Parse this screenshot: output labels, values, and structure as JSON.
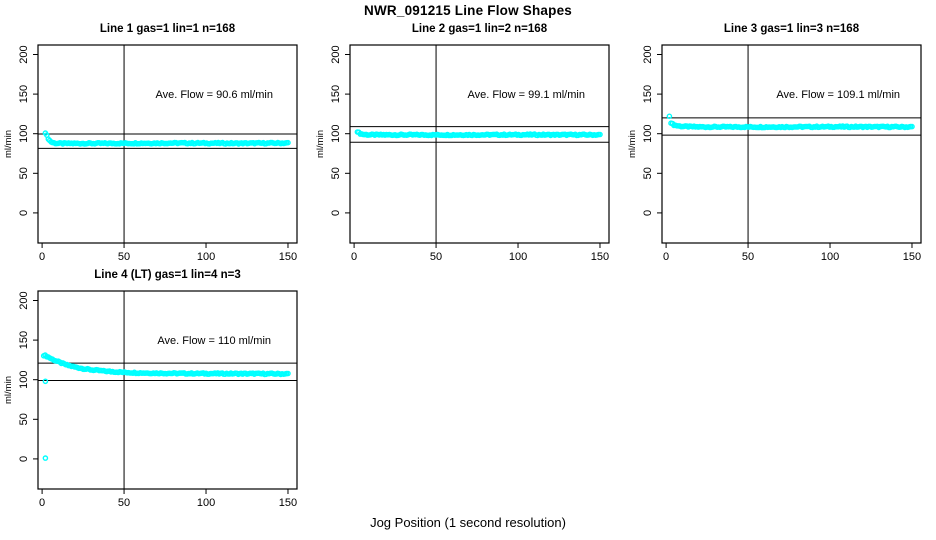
{
  "figure": {
    "title": "NWR_091215  Line Flow Shapes",
    "xlabel": "Jog Position (1 second resolution)",
    "background_color": "#ffffff",
    "point_color": "#00ffff",
    "line_color": "#000000"
  },
  "chart_data": {
    "type": "scatter",
    "title": "NWR_091215  Line Flow Shapes",
    "xlabel": "Jog Position (1 second resolution)",
    "grid": "off",
    "layout_hint": "4 panels: 3 in top row, 1 in bottom-left; each panel has a vertical reference line at x=50 and horizontal reference lines at average flow +/- 10%",
    "xlim": [
      -2.5,
      155.5
    ],
    "ylim": [
      -38,
      212
    ],
    "x_ticks": [
      0,
      50,
      100,
      150
    ],
    "y_ticks": [
      0,
      50,
      100,
      150,
      200
    ],
    "annotation_anchor_data_coords": [
      105,
      150
    ],
    "panels": [
      {
        "title": "Line 1 gas=1 lin=1 n=168",
        "ylabel": "ml/min",
        "annotation": "Ave. Flow =  90.6  ml/min",
        "ave_flow_ml_min": 90.6,
        "n_points": 168,
        "vline_x": 50,
        "hlines": [
          99.7,
          81.5
        ],
        "series_keypoints": [
          [
            2,
            101.5
          ],
          [
            3,
            97
          ],
          [
            4,
            93
          ],
          [
            5,
            90.5
          ],
          [
            6,
            89
          ],
          [
            8,
            88
          ],
          [
            12,
            87.7
          ],
          [
            40,
            87.8
          ],
          [
            80,
            88.2
          ],
          [
            120,
            87.9
          ],
          [
            150,
            88.2
          ]
        ],
        "outlier_points": []
      },
      {
        "title": "Line 2 gas=1 lin=2 n=168",
        "ylabel": "ml/min",
        "annotation": "Ave. Flow =  99.1  ml/min",
        "ave_flow_ml_min": 99.1,
        "n_points": 168,
        "vline_x": 50,
        "hlines": [
          109.0,
          89.2
        ],
        "series_keypoints": [
          [
            2,
            103
          ],
          [
            3,
            101
          ],
          [
            4,
            100
          ],
          [
            6,
            99
          ],
          [
            10,
            98.6
          ],
          [
            50,
            98.5
          ],
          [
            100,
            98.7
          ],
          [
            150,
            98.6
          ]
        ],
        "outlier_points": []
      },
      {
        "title": "Line 3 gas=1 lin=3 n=168",
        "ylabel": "ml/min",
        "annotation": "Ave. Flow =  109.1  ml/min",
        "ave_flow_ml_min": 109.1,
        "n_points": 168,
        "vline_x": 50,
        "hlines": [
          120.0,
          98.2
        ],
        "series_keypoints": [
          [
            3,
            114
          ],
          [
            4,
            112
          ],
          [
            5,
            111
          ],
          [
            7,
            110
          ],
          [
            10,
            109.2
          ],
          [
            20,
            108.6
          ],
          [
            60,
            108.5
          ],
          [
            100,
            108.8
          ],
          [
            150,
            108.6
          ]
        ],
        "outlier_points": [
          [
            2,
            122
          ]
        ]
      },
      {
        "title": "Line 4 (LT) gas=1 lin=4 n=3",
        "ylabel": "ml/min",
        "annotation": "Ave. Flow =  110  ml/min",
        "ave_flow_ml_min": 110,
        "n_points": 168,
        "vline_x": 50,
        "hlines": [
          121.0,
          99.0
        ],
        "series_keypoints": [
          [
            1,
            131
          ],
          [
            3,
            129.5
          ],
          [
            6,
            126
          ],
          [
            10,
            122.5
          ],
          [
            15,
            118.5
          ],
          [
            20,
            116
          ],
          [
            25,
            114
          ],
          [
            30,
            112.5
          ],
          [
            40,
            110.5
          ],
          [
            50,
            109.3
          ],
          [
            60,
            108.6
          ],
          [
            80,
            108
          ],
          [
            100,
            107.8
          ],
          [
            150,
            107.4
          ]
        ],
        "outlier_points": [
          [
            2,
            98
          ],
          [
            2,
            1
          ]
        ]
      }
    ]
  }
}
